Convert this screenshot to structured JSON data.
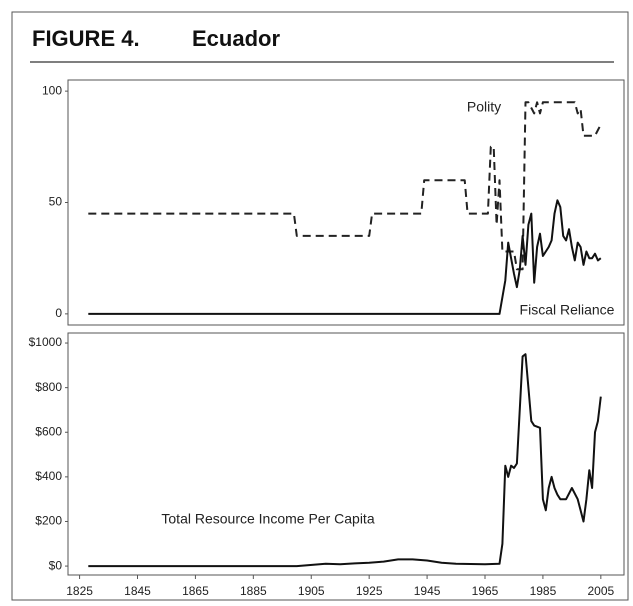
{
  "header": {
    "label": "FIGURE 4.",
    "title": "Ecuador"
  },
  "chart_data": [
    {
      "type": "line",
      "xlim": [
        1821,
        2013
      ],
      "ylim": [
        -5,
        105
      ],
      "yticks": [
        0,
        50,
        100
      ],
      "series": [
        {
          "name": "Polity",
          "color": "#222",
          "dashed": true,
          "x": [
            1828,
            1899,
            1900,
            1925,
            1926,
            1943,
            1944,
            1958,
            1959,
            1966,
            1967,
            1968,
            1969,
            1970,
            1971,
            1975,
            1976,
            1978,
            1979,
            1980,
            1982,
            1983,
            1984,
            1985,
            1996,
            1997,
            1998,
            1999,
            2003,
            2005
          ],
          "values": [
            45,
            45,
            35,
            35,
            45,
            45,
            60,
            60,
            45,
            45,
            75,
            75,
            40,
            60,
            28,
            28,
            20,
            20,
            95,
            95,
            90,
            95,
            90,
            95,
            95,
            90,
            92,
            80,
            80,
            85
          ]
        },
        {
          "name": "Fiscal Reliance",
          "color": "#111",
          "dashed": false,
          "x": [
            1828,
            1970,
            1972,
            1973,
            1974,
            1975,
            1976,
            1977,
            1978,
            1979,
            1980,
            1981,
            1982,
            1983,
            1984,
            1985,
            1986,
            1987,
            1988,
            1989,
            1990,
            1991,
            1992,
            1993,
            1994,
            1995,
            1996,
            1997,
            1998,
            1999,
            2000,
            2001,
            2002,
            2003,
            2004,
            2005
          ],
          "values": [
            0,
            0,
            15,
            32,
            25,
            18,
            12,
            20,
            35,
            22,
            40,
            45,
            14,
            30,
            36,
            26,
            28,
            30,
            33,
            45,
            51,
            48,
            35,
            33,
            38,
            30,
            24,
            32,
            30,
            22,
            28,
            25,
            25,
            27,
            24,
            25
          ]
        }
      ]
    },
    {
      "type": "line",
      "xlim": [
        1821,
        2013
      ],
      "ylim": [
        -40,
        1045
      ],
      "yticks": [
        {
          "value": 0,
          "label": "$0"
        },
        {
          "value": 200,
          "label": "$200"
        },
        {
          "value": 400,
          "label": "$400"
        },
        {
          "value": 600,
          "label": "$600"
        },
        {
          "value": 800,
          "label": "$800"
        },
        {
          "value": 1000,
          "label": "$1000"
        }
      ],
      "xticks": [
        1825,
        1845,
        1865,
        1885,
        1905,
        1925,
        1945,
        1965,
        1985,
        2005
      ],
      "series": [
        {
          "name": "Total Resource Income Per Capita",
          "color": "#111",
          "dashed": false,
          "x": [
            1828,
            1900,
            1910,
            1915,
            1920,
            1925,
            1930,
            1935,
            1940,
            1945,
            1950,
            1955,
            1965,
            1970,
            1971,
            1972,
            1973,
            1974,
            1975,
            1976,
            1978,
            1979,
            1980,
            1981,
            1982,
            1984,
            1985,
            1986,
            1987,
            1988,
            1989,
            1990,
            1991,
            1993,
            1995,
            1997,
            1999,
            2000,
            2001,
            2002,
            2003,
            2004,
            2005
          ],
          "values": [
            0,
            0,
            10,
            8,
            12,
            15,
            20,
            30,
            30,
            25,
            15,
            10,
            8,
            10,
            100,
            450,
            400,
            450,
            440,
            460,
            940,
            950,
            800,
            650,
            630,
            620,
            300,
            250,
            350,
            400,
            350,
            320,
            300,
            300,
            350,
            300,
            200,
            300,
            430,
            350,
            600,
            650,
            760
          ]
        }
      ]
    }
  ]
}
